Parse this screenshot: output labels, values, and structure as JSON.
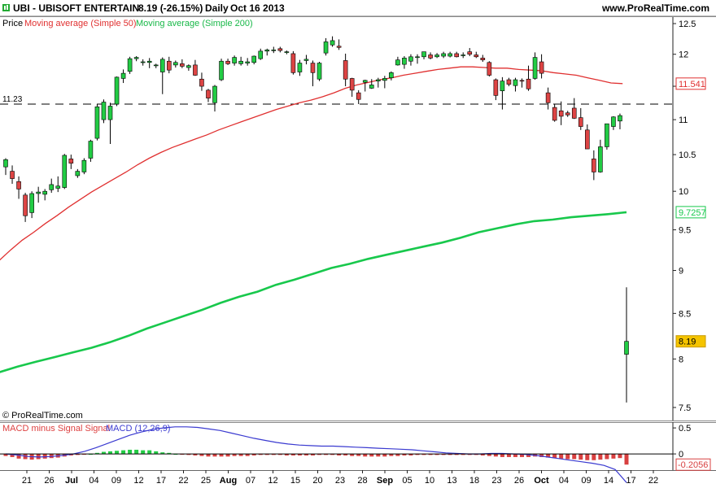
{
  "header": {
    "ticker": "UBI - UBISOFT ENTERTAIN",
    "quote": "8.19 (-26.15%)",
    "period": "Daily",
    "date": "Oct 16 2013",
    "site": "www.ProRealTime.com"
  },
  "legend": {
    "price": "Price",
    "ma50": "Moving average (Simple 50)",
    "ma200": "Moving average (Simple 200)"
  },
  "copyright": "© ProRealTime.com",
  "macd_legend": {
    "hist": "MACD minus Signal Signal",
    "macd": "MACD (12,26,9)"
  },
  "colors": {
    "up": "#22cc44",
    "down": "#dd4444",
    "ma50": "#e03030",
    "ma200": "#18c84c",
    "last_price_badge": "#f5c400",
    "macd_line": "#3a3ad0",
    "macd_hist_neg": "#d84040",
    "macd_hist_pos": "#22cc44"
  },
  "chart_data": [
    {
      "type": "candlestick",
      "title": "UBI - UBISOFT ENTERTAIN",
      "yticks": [
        12.5,
        12,
        11.5,
        11,
        10.5,
        10,
        9.5,
        9,
        8.5,
        8,
        7.5
      ],
      "xticks": [
        "21",
        "26",
        "Jul",
        "04",
        "09",
        "12",
        "17",
        "22",
        "25",
        "Aug",
        "07",
        "12",
        "15",
        "20",
        "23",
        "28",
        "Sep",
        "05",
        "10",
        "13",
        "18",
        "23",
        "26",
        "Oct",
        "04",
        "09",
        "14",
        "17",
        "22"
      ],
      "reference_line": {
        "value": 11.23,
        "label": "11.23"
      },
      "value_badges": [
        {
          "series": "ma50",
          "value": "11.541"
        },
        {
          "series": "ma200",
          "value": "9.7257"
        },
        {
          "series": "price",
          "value": "8.19"
        }
      ],
      "candles": [
        [
          10.33,
          10.45,
          10.22,
          10.43
        ],
        [
          10.27,
          10.35,
          10.1,
          10.17
        ],
        [
          10.13,
          10.2,
          9.9,
          10.03
        ],
        [
          9.95,
          9.98,
          9.6,
          9.68
        ],
        [
          9.72,
          10.0,
          9.65,
          9.97
        ],
        [
          9.97,
          10.06,
          9.85,
          9.99
        ],
        [
          9.96,
          10.03,
          9.88,
          10.0
        ],
        [
          10.02,
          10.17,
          9.98,
          10.09
        ],
        [
          10.04,
          10.2,
          9.99,
          10.07
        ],
        [
          10.05,
          10.51,
          10.03,
          10.49
        ],
        [
          10.44,
          10.5,
          10.3,
          10.38
        ],
        [
          10.21,
          10.3,
          10.18,
          10.27
        ],
        [
          10.26,
          10.45,
          10.23,
          10.42
        ],
        [
          10.45,
          10.71,
          10.4,
          10.69
        ],
        [
          10.73,
          11.23,
          10.7,
          11.19
        ],
        [
          11.0,
          11.3,
          10.95,
          11.26
        ],
        [
          11.0,
          11.25,
          10.65,
          11.2
        ],
        [
          11.23,
          11.65,
          11.2,
          11.64
        ],
        [
          11.62,
          11.76,
          11.55,
          11.7
        ],
        [
          11.73,
          11.96,
          11.69,
          11.93
        ],
        [
          11.93,
          11.97,
          11.89,
          11.95
        ],
        [
          11.88,
          11.92,
          11.82,
          11.88
        ],
        [
          11.87,
          11.94,
          11.78,
          11.89
        ],
        [
          11.82,
          11.85,
          11.78,
          11.83
        ],
        [
          11.72,
          11.95,
          11.38,
          11.92
        ],
        [
          11.89,
          11.96,
          11.7,
          11.75
        ],
        [
          11.83,
          11.9,
          11.79,
          11.87
        ],
        [
          11.85,
          11.92,
          11.78,
          11.81
        ],
        [
          11.79,
          11.84,
          11.74,
          11.82
        ],
        [
          11.83,
          11.91,
          11.66,
          11.67
        ],
        [
          11.61,
          11.71,
          11.43,
          11.5
        ],
        [
          11.44,
          11.46,
          11.26,
          11.32
        ],
        [
          11.25,
          11.52,
          11.12,
          11.5
        ],
        [
          11.6,
          11.93,
          11.58,
          11.89
        ],
        [
          11.89,
          11.93,
          11.83,
          11.85
        ],
        [
          11.86,
          11.98,
          11.82,
          11.95
        ],
        [
          11.85,
          11.96,
          11.82,
          11.89
        ],
        [
          11.86,
          11.94,
          11.82,
          11.88
        ],
        [
          11.87,
          11.98,
          11.84,
          11.97
        ],
        [
          11.93,
          12.09,
          11.91,
          12.05
        ],
        [
          12.05,
          12.09,
          11.98,
          12.07
        ],
        [
          12.06,
          12.12,
          12.02,
          12.07
        ],
        [
          12.09,
          12.12,
          12.03,
          12.06
        ],
        [
          12.03,
          12.06,
          12.0,
          12.04
        ],
        [
          12.01,
          12.05,
          11.68,
          11.71
        ],
        [
          11.72,
          11.91,
          11.66,
          11.86
        ],
        [
          11.9,
          11.99,
          11.84,
          11.92
        ],
        [
          11.86,
          11.9,
          11.5,
          11.71
        ],
        [
          11.61,
          11.88,
          11.58,
          11.86
        ],
        [
          12.02,
          12.26,
          11.98,
          12.2
        ],
        [
          12.15,
          12.29,
          12.12,
          12.22
        ],
        [
          12.13,
          12.24,
          12.07,
          12.11
        ],
        [
          11.9,
          12.01,
          11.5,
          11.61
        ],
        [
          11.62,
          11.63,
          11.34,
          11.44
        ],
        [
          11.4,
          11.44,
          11.23,
          11.3
        ],
        [
          11.56,
          11.6,
          11.42,
          11.59
        ],
        [
          11.47,
          11.61,
          11.46,
          11.52
        ],
        [
          11.58,
          11.63,
          11.48,
          11.6
        ],
        [
          11.59,
          11.66,
          11.47,
          11.62
        ],
        [
          11.63,
          11.73,
          11.59,
          11.71
        ],
        [
          11.83,
          11.96,
          11.82,
          11.91
        ],
        [
          11.84,
          11.97,
          11.77,
          11.94
        ],
        [
          11.89,
          12.0,
          11.82,
          11.96
        ],
        [
          11.95,
          12.0,
          11.85,
          11.96
        ],
        [
          11.96,
          12.04,
          11.92,
          12.04
        ],
        [
          11.99,
          12.03,
          11.92,
          11.94
        ],
        [
          11.96,
          12.02,
          11.94,
          11.99
        ],
        [
          11.97,
          12.04,
          11.94,
          12.01
        ],
        [
          11.97,
          12.04,
          11.95,
          12.01
        ],
        [
          12.01,
          12.04,
          11.95,
          11.96
        ],
        [
          11.99,
          12.03,
          11.94,
          11.99
        ],
        [
          12.04,
          12.1,
          11.97,
          12.0
        ],
        [
          11.99,
          12.04,
          11.94,
          11.96
        ],
        [
          11.94,
          11.99,
          11.88,
          11.91
        ],
        [
          11.87,
          11.89,
          11.65,
          11.67
        ],
        [
          11.6,
          11.62,
          11.29,
          11.36
        ],
        [
          11.43,
          11.64,
          11.15,
          11.58
        ],
        [
          11.6,
          11.63,
          11.5,
          11.53
        ],
        [
          11.51,
          11.63,
          11.42,
          11.6
        ],
        [
          11.59,
          11.62,
          11.48,
          11.58
        ],
        [
          11.61,
          11.82,
          11.43,
          11.46
        ],
        [
          11.62,
          12.03,
          11.6,
          11.95
        ],
        [
          11.88,
          12.0,
          11.62,
          11.7
        ],
        [
          11.4,
          11.48,
          11.15,
          11.25
        ],
        [
          11.18,
          11.23,
          10.97,
          10.99
        ],
        [
          11.13,
          11.27,
          10.92,
          11.05
        ],
        [
          11.1,
          11.13,
          11.04,
          11.07
        ],
        [
          11.17,
          11.32,
          11.01,
          11.02
        ],
        [
          11.03,
          11.17,
          10.85,
          10.9
        ],
        [
          10.85,
          10.93,
          10.59,
          10.58
        ],
        [
          10.44,
          10.56,
          10.15,
          10.26
        ],
        [
          10.26,
          10.71,
          10.25,
          10.61
        ],
        [
          10.61,
          10.93,
          10.57,
          10.94
        ],
        [
          10.9,
          11.05,
          10.85,
          11.04
        ],
        [
          10.98,
          11.09,
          10.86,
          11.06
        ],
        [
          8.05,
          8.8,
          7.55,
          8.19
        ]
      ],
      "ma50": [
        9.12,
        9.25,
        9.37,
        9.47,
        9.58,
        9.68,
        9.79,
        9.89,
        9.99,
        10.08,
        10.17,
        10.26,
        10.36,
        10.45,
        10.53,
        10.6,
        10.66,
        10.72,
        10.78,
        10.85,
        10.91,
        10.97,
        11.03,
        11.09,
        11.15,
        11.2,
        11.25,
        11.29,
        11.34,
        11.4,
        11.47,
        11.52,
        11.56,
        11.6,
        11.63,
        11.67,
        11.7,
        11.73,
        11.76,
        11.78,
        11.8,
        11.8,
        11.79,
        11.78,
        11.78,
        11.76,
        11.75,
        11.74,
        11.71,
        11.69,
        11.67,
        11.63,
        11.59,
        11.55,
        11.54
      ],
      "ma200": [
        7.86,
        7.92,
        7.97,
        8.02,
        8.07,
        8.12,
        8.18,
        8.25,
        8.33,
        8.4,
        8.47,
        8.54,
        8.62,
        8.69,
        8.75,
        8.83,
        8.89,
        8.96,
        9.03,
        9.08,
        9.14,
        9.19,
        9.24,
        9.29,
        9.34,
        9.4,
        9.47,
        9.52,
        9.57,
        9.61,
        9.63,
        9.66,
        9.68,
        9.7,
        9.7257
      ]
    },
    {
      "type": "bar",
      "title": "MACD (12,26,9)",
      "yticks": [
        0.5,
        0
      ],
      "value_badges": [
        {
          "series": "macd_hist",
          "value": "-0.2056"
        }
      ],
      "histogram": [
        -0.04,
        -0.06,
        -0.09,
        -0.1,
        -0.11,
        -0.1,
        -0.09,
        -0.08,
        -0.07,
        -0.05,
        -0.03,
        -0.02,
        -0.01,
        0.0,
        0.02,
        0.04,
        0.05,
        0.06,
        0.07,
        0.08,
        0.08,
        0.07,
        0.07,
        0.05,
        0.03,
        0.02,
        0.0,
        -0.01,
        -0.02,
        -0.03,
        -0.04,
        -0.05,
        -0.05,
        -0.05,
        -0.05,
        -0.04,
        -0.04,
        -0.04,
        -0.03,
        -0.02,
        -0.02,
        -0.02,
        -0.02,
        -0.03,
        -0.03,
        -0.03,
        -0.03,
        -0.03,
        -0.02,
        -0.02,
        -0.02,
        -0.03,
        -0.03,
        -0.04,
        -0.04,
        -0.05,
        -0.05,
        -0.05,
        -0.05,
        -0.04,
        -0.04,
        -0.03,
        -0.03,
        -0.02,
        -0.02,
        -0.02,
        -0.02,
        -0.02,
        -0.02,
        -0.02,
        -0.02,
        -0.02,
        -0.02,
        -0.03,
        -0.04,
        -0.05,
        -0.06,
        -0.06,
        -0.06,
        -0.06,
        -0.06,
        -0.05,
        -0.06,
        -0.07,
        -0.08,
        -0.09,
        -0.1,
        -0.1,
        -0.11,
        -0.12,
        -0.12,
        -0.11,
        -0.1,
        -0.09,
        -0.08,
        -0.2056
      ],
      "macd": [
        0.0,
        -0.02,
        -0.05,
        -0.06,
        -0.05,
        -0.03,
        0.0,
        0.05,
        0.12,
        0.2,
        0.28,
        0.36,
        0.42,
        0.47,
        0.5,
        0.52,
        0.52,
        0.51,
        0.48,
        0.45,
        0.4,
        0.35,
        0.3,
        0.26,
        0.22,
        0.19,
        0.17,
        0.16,
        0.15,
        0.15,
        0.14,
        0.13,
        0.12,
        0.11,
        0.1,
        0.09,
        0.08,
        0.06,
        0.04,
        0.02,
        0.01,
        0.0,
        0.0,
        0.01,
        0.01,
        0.0,
        -0.01,
        -0.03,
        -0.06,
        -0.09,
        -0.12,
        -0.15,
        -0.18,
        -0.22,
        -0.3,
        -0.55
      ]
    }
  ]
}
